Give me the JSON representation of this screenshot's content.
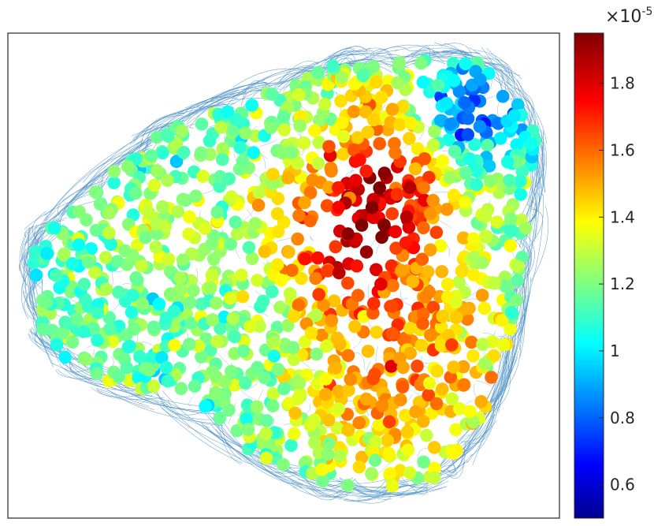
{
  "chart_data": {
    "type": "scatter",
    "title": "",
    "xlabel": "",
    "ylabel": "",
    "axes_ticks_visible": false,
    "grid": false,
    "colormap": "jet",
    "colorbar": {
      "min": 0.5,
      "max": 1.95,
      "multiplier_label": "×10",
      "multiplier_exponent": "-5",
      "ticks": [
        0.6,
        0.8,
        1,
        1.2,
        1.4,
        1.6,
        1.8
      ],
      "tick_labels": [
        "0.6",
        "0.8",
        "1",
        "1.2",
        "1.4",
        "1.6",
        "1.8"
      ]
    },
    "edge_color": "#4a8fc4",
    "node_count_drawn": 1400,
    "regions": [
      {
        "name": "top-right cluster",
        "value": 0.85
      },
      {
        "name": "upper-center ridge",
        "value": 1.8
      },
      {
        "name": "right-center body",
        "value": 1.6
      },
      {
        "name": "bottom-center body",
        "value": 1.55
      },
      {
        "name": "left lobe",
        "value": 1.15
      }
    ]
  }
}
